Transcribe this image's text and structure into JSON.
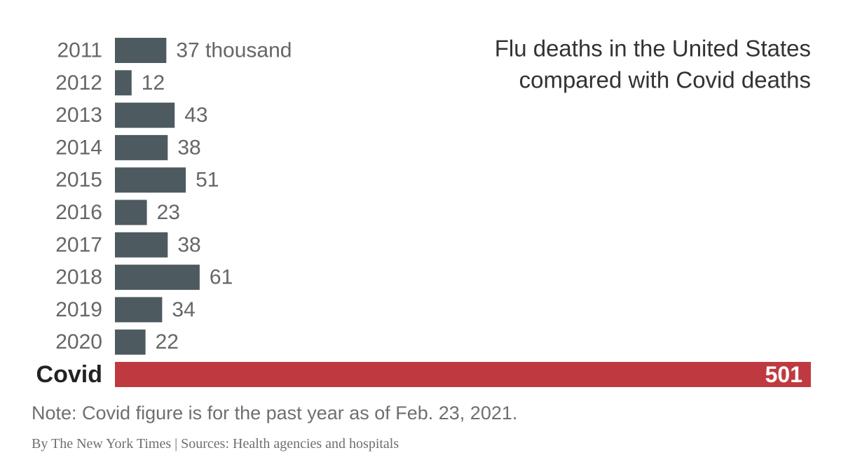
{
  "chart_data": {
    "type": "bar",
    "orientation": "horizontal",
    "title_lines": [
      "Flu deaths in the United States",
      "compared with Covid deaths"
    ],
    "categories": [
      "2011",
      "2012",
      "2013",
      "2014",
      "2015",
      "2016",
      "2017",
      "2018",
      "2019",
      "2020",
      "Covid"
    ],
    "values": [
      37,
      12,
      43,
      38,
      51,
      23,
      38,
      61,
      34,
      22,
      501
    ],
    "value_labels": [
      "37 thousand",
      "12",
      "43",
      "38",
      "51",
      "23",
      "38",
      "61",
      "34",
      "22",
      "501"
    ],
    "unit": "thousand",
    "highlight_category": "Covid",
    "colors": {
      "bar": "#4d5a60",
      "highlight": "#bf3a40",
      "label": "#666666",
      "highlight_label_on_bar": "#ffffff",
      "highlight_category_label": "#222222",
      "title": "#333333"
    },
    "xlim": [
      0,
      501
    ]
  },
  "note": "Note: Covid figure is for the past year as of Feb. 23, 2021.",
  "credit": "By The New York Times | Sources: Health agencies and hospitals"
}
